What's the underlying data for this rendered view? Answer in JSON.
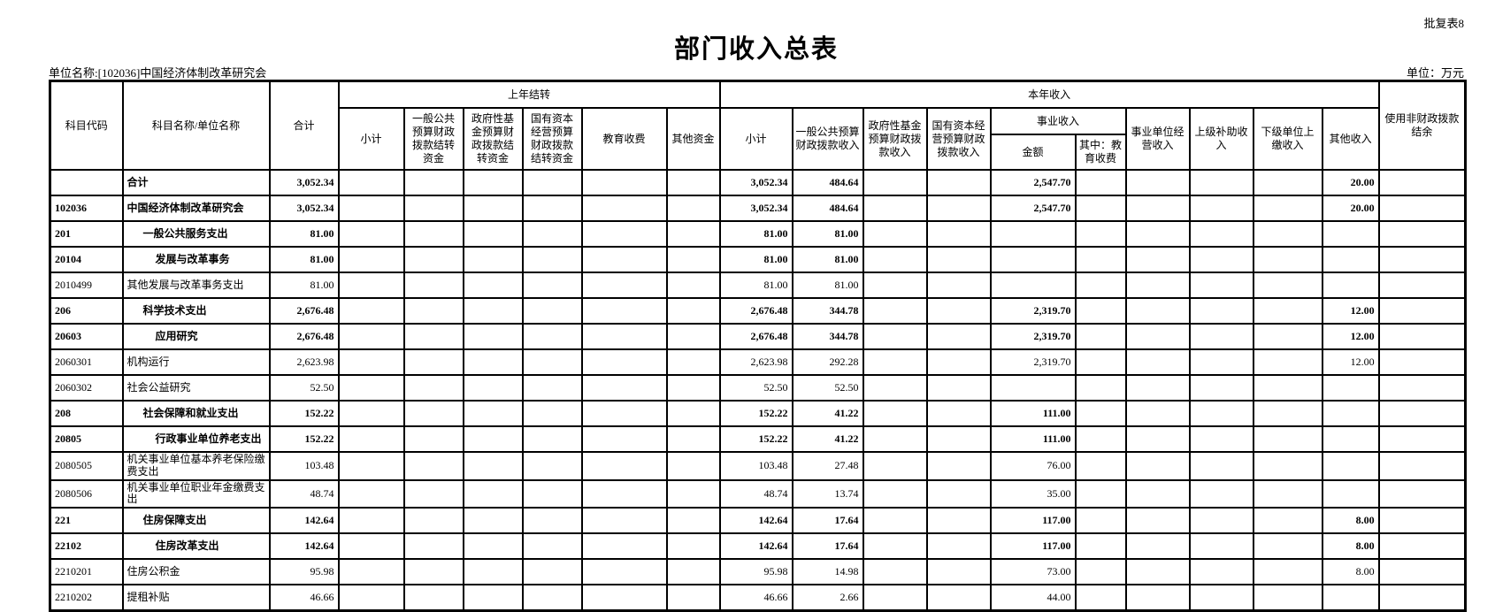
{
  "meta": {
    "sheet_label": "批复表8",
    "title": "部门收入总表",
    "unit_name_label": "单位名称:[102036]中国经济体制改革研究会",
    "unit_label": "单位：万元",
    "colors": {
      "text": "#000000",
      "background": "#ffffff",
      "border": "#000000"
    }
  },
  "table": {
    "header": {
      "col_code": "科目代码",
      "col_name": "科目名称/单位名称",
      "col_total": "合计",
      "group_prev": "上年结转",
      "prev_cols": [
        "小计",
        "一般公共预算财政拨款结转资金",
        "政府性基金预算财政拨款结转资金",
        "国有资本经营预算财政拨款结转资金",
        "教育收费",
        "其他资金"
      ],
      "group_cur": "本年收入",
      "cur_cols_a": [
        "小计",
        "一般公共预算财政拨款收入",
        "政府性基金预算财政拨款收入",
        "国有资本经营预算财政拨款收入"
      ],
      "group_shiye": "事业收入",
      "shiye_cols": [
        "金额",
        "其中：教育收费"
      ],
      "cur_cols_b": [
        "事业单位经营收入",
        "上级补助收入",
        "下级单位上缴收入",
        "其他收入"
      ],
      "col_nonfiscal": "使用非财政拨款结余"
    },
    "rows": [
      {
        "code": "",
        "name": "合计",
        "bold": true,
        "indent": 0,
        "cells": [
          "3,052.34",
          "",
          "",
          "",
          "",
          "",
          "",
          "3,052.34",
          "484.64",
          "",
          "",
          "2,547.70",
          "",
          "",
          "",
          "",
          "20.00",
          ""
        ]
      },
      {
        "code": "102036",
        "name": "中国经济体制改革研究会",
        "bold": true,
        "indent": 0,
        "cells": [
          "3,052.34",
          "",
          "",
          "",
          "",
          "",
          "",
          "3,052.34",
          "484.64",
          "",
          "",
          "2,547.70",
          "",
          "",
          "",
          "",
          "20.00",
          ""
        ]
      },
      {
        "code": "201",
        "name": "一般公共服务支出",
        "bold": true,
        "indent": 1,
        "cells": [
          "81.00",
          "",
          "",
          "",
          "",
          "",
          "",
          "81.00",
          "81.00",
          "",
          "",
          "",
          "",
          "",
          "",
          "",
          "",
          ""
        ]
      },
      {
        "code": "20104",
        "name": "发展与改革事务",
        "bold": true,
        "indent": 2,
        "cells": [
          "81.00",
          "",
          "",
          "",
          "",
          "",
          "",
          "81.00",
          "81.00",
          "",
          "",
          "",
          "",
          "",
          "",
          "",
          "",
          ""
        ]
      },
      {
        "code": "2010499",
        "name": "其他发展与改革事务支出",
        "bold": false,
        "indent": 0,
        "cells": [
          "81.00",
          "",
          "",
          "",
          "",
          "",
          "",
          "81.00",
          "81.00",
          "",
          "",
          "",
          "",
          "",
          "",
          "",
          "",
          ""
        ]
      },
      {
        "code": "206",
        "name": "科学技术支出",
        "bold": true,
        "indent": 1,
        "cells": [
          "2,676.48",
          "",
          "",
          "",
          "",
          "",
          "",
          "2,676.48",
          "344.78",
          "",
          "",
          "2,319.70",
          "",
          "",
          "",
          "",
          "12.00",
          ""
        ]
      },
      {
        "code": "20603",
        "name": "应用研究",
        "bold": true,
        "indent": 2,
        "cells": [
          "2,676.48",
          "",
          "",
          "",
          "",
          "",
          "",
          "2,676.48",
          "344.78",
          "",
          "",
          "2,319.70",
          "",
          "",
          "",
          "",
          "12.00",
          ""
        ]
      },
      {
        "code": "2060301",
        "name": "机构运行",
        "bold": false,
        "indent": 0,
        "cells": [
          "2,623.98",
          "",
          "",
          "",
          "",
          "",
          "",
          "2,623.98",
          "292.28",
          "",
          "",
          "2,319.70",
          "",
          "",
          "",
          "",
          "12.00",
          ""
        ]
      },
      {
        "code": "2060302",
        "name": "社会公益研究",
        "bold": false,
        "indent": 0,
        "cells": [
          "52.50",
          "",
          "",
          "",
          "",
          "",
          "",
          "52.50",
          "52.50",
          "",
          "",
          "",
          "",
          "",
          "",
          "",
          "",
          ""
        ]
      },
      {
        "code": "208",
        "name": "社会保障和就业支出",
        "bold": true,
        "indent": 1,
        "cells": [
          "152.22",
          "",
          "",
          "",
          "",
          "",
          "",
          "152.22",
          "41.22",
          "",
          "",
          "111.00",
          "",
          "",
          "",
          "",
          "",
          ""
        ]
      },
      {
        "code": "20805",
        "name": "行政事业单位养老支出",
        "bold": true,
        "indent": 2,
        "cells": [
          "152.22",
          "",
          "",
          "",
          "",
          "",
          "",
          "152.22",
          "41.22",
          "",
          "",
          "111.00",
          "",
          "",
          "",
          "",
          "",
          ""
        ]
      },
      {
        "code": "2080505",
        "name": "机关事业单位基本养老保险缴费支出",
        "bold": false,
        "indent": 0,
        "cells": [
          "103.48",
          "",
          "",
          "",
          "",
          "",
          "",
          "103.48",
          "27.48",
          "",
          "",
          "76.00",
          "",
          "",
          "",
          "",
          "",
          ""
        ]
      },
      {
        "code": "2080506",
        "name": "机关事业单位职业年金缴费支出",
        "bold": false,
        "indent": 0,
        "cells": [
          "48.74",
          "",
          "",
          "",
          "",
          "",
          "",
          "48.74",
          "13.74",
          "",
          "",
          "35.00",
          "",
          "",
          "",
          "",
          "",
          ""
        ]
      },
      {
        "code": "221",
        "name": "住房保障支出",
        "bold": true,
        "indent": 1,
        "cells": [
          "142.64",
          "",
          "",
          "",
          "",
          "",
          "",
          "142.64",
          "17.64",
          "",
          "",
          "117.00",
          "",
          "",
          "",
          "",
          "8.00",
          ""
        ]
      },
      {
        "code": "22102",
        "name": "住房改革支出",
        "bold": true,
        "indent": 2,
        "cells": [
          "142.64",
          "",
          "",
          "",
          "",
          "",
          "",
          "142.64",
          "17.64",
          "",
          "",
          "117.00",
          "",
          "",
          "",
          "",
          "8.00",
          ""
        ]
      },
      {
        "code": "2210201",
        "name": "住房公积金",
        "bold": false,
        "indent": 0,
        "cells": [
          "95.98",
          "",
          "",
          "",
          "",
          "",
          "",
          "95.98",
          "14.98",
          "",
          "",
          "73.00",
          "",
          "",
          "",
          "",
          "8.00",
          ""
        ]
      },
      {
        "code": "2210202",
        "name": "提租补贴",
        "bold": false,
        "indent": 0,
        "cells": [
          "46.66",
          "",
          "",
          "",
          "",
          "",
          "",
          "46.66",
          "2.66",
          "",
          "",
          "44.00",
          "",
          "",
          "",
          "",
          "",
          ""
        ]
      }
    ]
  }
}
